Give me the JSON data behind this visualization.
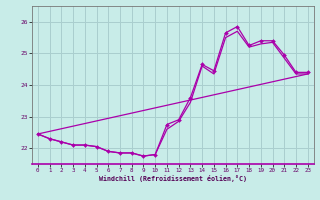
{
  "xlabel": "Windchill (Refroidissement éolien,°C)",
  "bg_color": "#c8ece8",
  "grid_color": "#aacece",
  "line_color": "#aa00aa",
  "xlim": [
    -0.5,
    23.5
  ],
  "ylim": [
    21.5,
    26.5
  ],
  "yticks": [
    22,
    23,
    24,
    25,
    26
  ],
  "xticks": [
    0,
    1,
    2,
    3,
    4,
    5,
    6,
    7,
    8,
    9,
    10,
    11,
    12,
    13,
    14,
    15,
    16,
    17,
    18,
    19,
    20,
    21,
    22,
    23
  ],
  "series1_x": [
    0,
    1,
    2,
    3,
    4,
    5,
    6,
    7,
    8,
    9,
    10,
    11,
    12,
    13,
    14,
    15,
    16,
    17,
    18,
    19,
    20,
    21,
    22,
    23
  ],
  "series1_y": [
    22.45,
    22.3,
    22.2,
    22.1,
    22.1,
    22.05,
    21.9,
    21.85,
    21.85,
    21.75,
    21.8,
    22.75,
    22.9,
    23.6,
    24.65,
    24.45,
    25.65,
    25.85,
    25.25,
    25.4,
    25.4,
    24.95,
    24.4,
    24.4
  ],
  "series2_x": [
    0,
    1,
    2,
    3,
    4,
    5,
    6,
    7,
    8,
    9,
    10,
    11,
    12,
    13,
    14,
    15,
    16,
    17,
    18,
    19,
    20,
    21,
    22,
    23
  ],
  "series2_y": [
    22.45,
    22.3,
    22.2,
    22.1,
    22.1,
    22.05,
    21.9,
    21.85,
    21.85,
    21.75,
    21.8,
    22.6,
    22.85,
    23.45,
    24.6,
    24.35,
    25.5,
    25.7,
    25.2,
    25.3,
    25.35,
    24.85,
    24.35,
    24.35
  ],
  "series3_x": [
    0,
    23
  ],
  "series3_y": [
    22.45,
    24.35
  ]
}
